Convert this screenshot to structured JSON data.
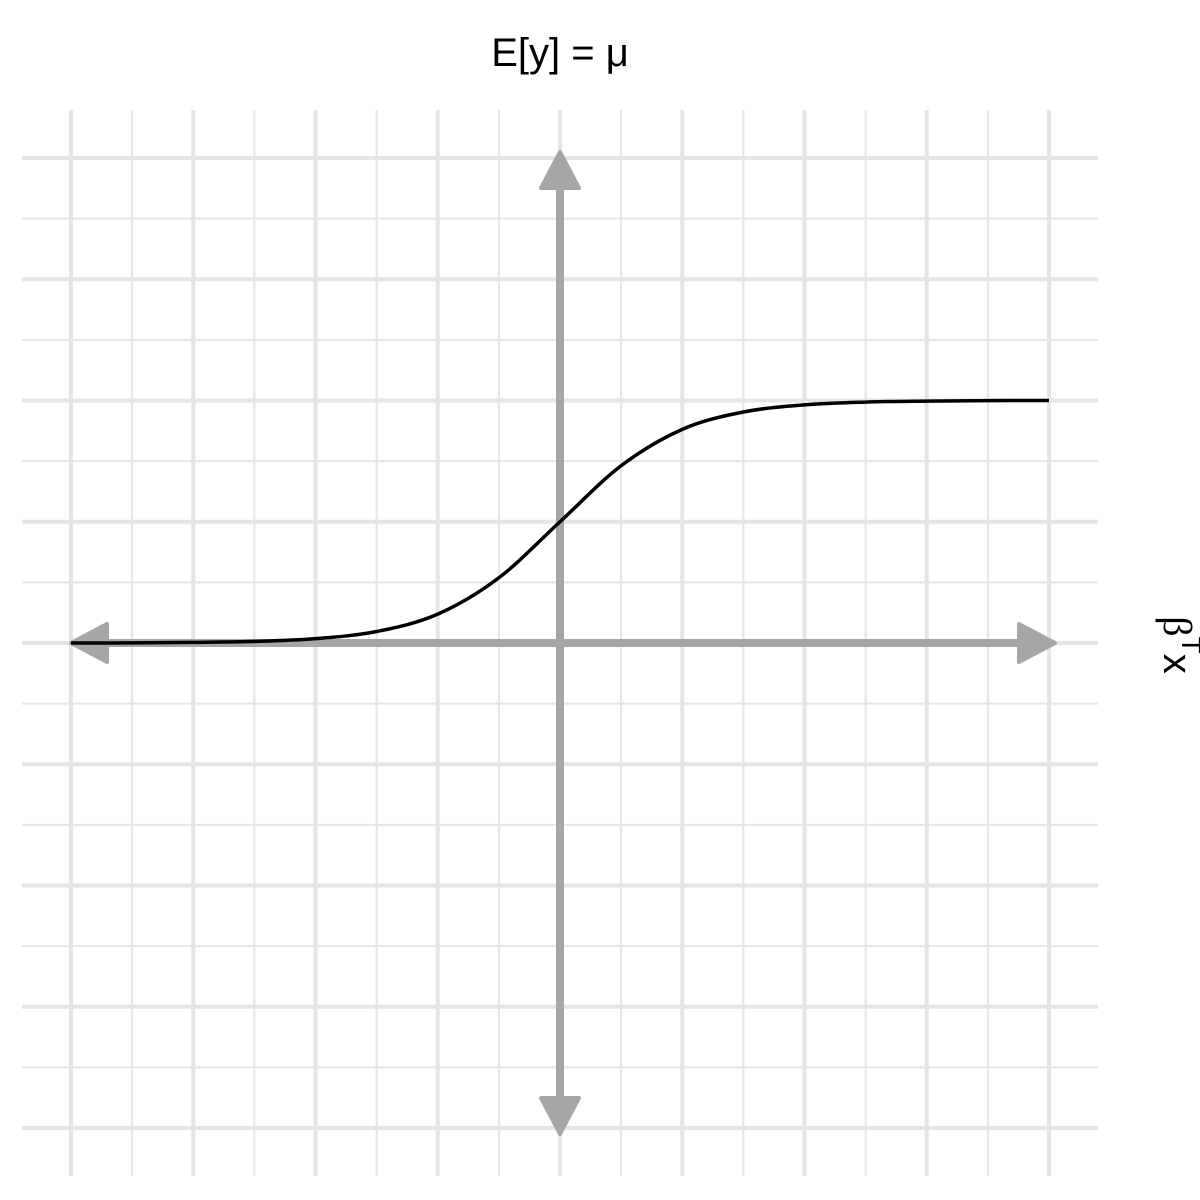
{
  "chart_data": {
    "type": "line",
    "title": "E[y] = μ",
    "xlabel": "β",
    "xlabel_superscript": "T",
    "xlabel_suffix": "x",
    "ylabel": "",
    "xlim": [
      -4,
      4
    ],
    "ylim": [
      -4,
      4
    ],
    "grid": true,
    "axis_color": "#a6a6a6",
    "grid_color": "#e5e5e5",
    "line_color": "#000000",
    "series": [
      {
        "x": [
          -4,
          -3.5,
          -3,
          -2.5,
          -2,
          -1.5,
          -1,
          -0.5,
          0,
          0.5,
          1,
          1.5,
          2,
          2.5,
          3,
          3.5,
          4
        ],
        "y": [
          0,
          0.001,
          0.005,
          0.013,
          0.036,
          0.095,
          0.238,
          0.538,
          1.0,
          1.462,
          1.762,
          1.905,
          1.964,
          1.987,
          1.995,
          1.999,
          2.0
        ]
      }
    ]
  }
}
